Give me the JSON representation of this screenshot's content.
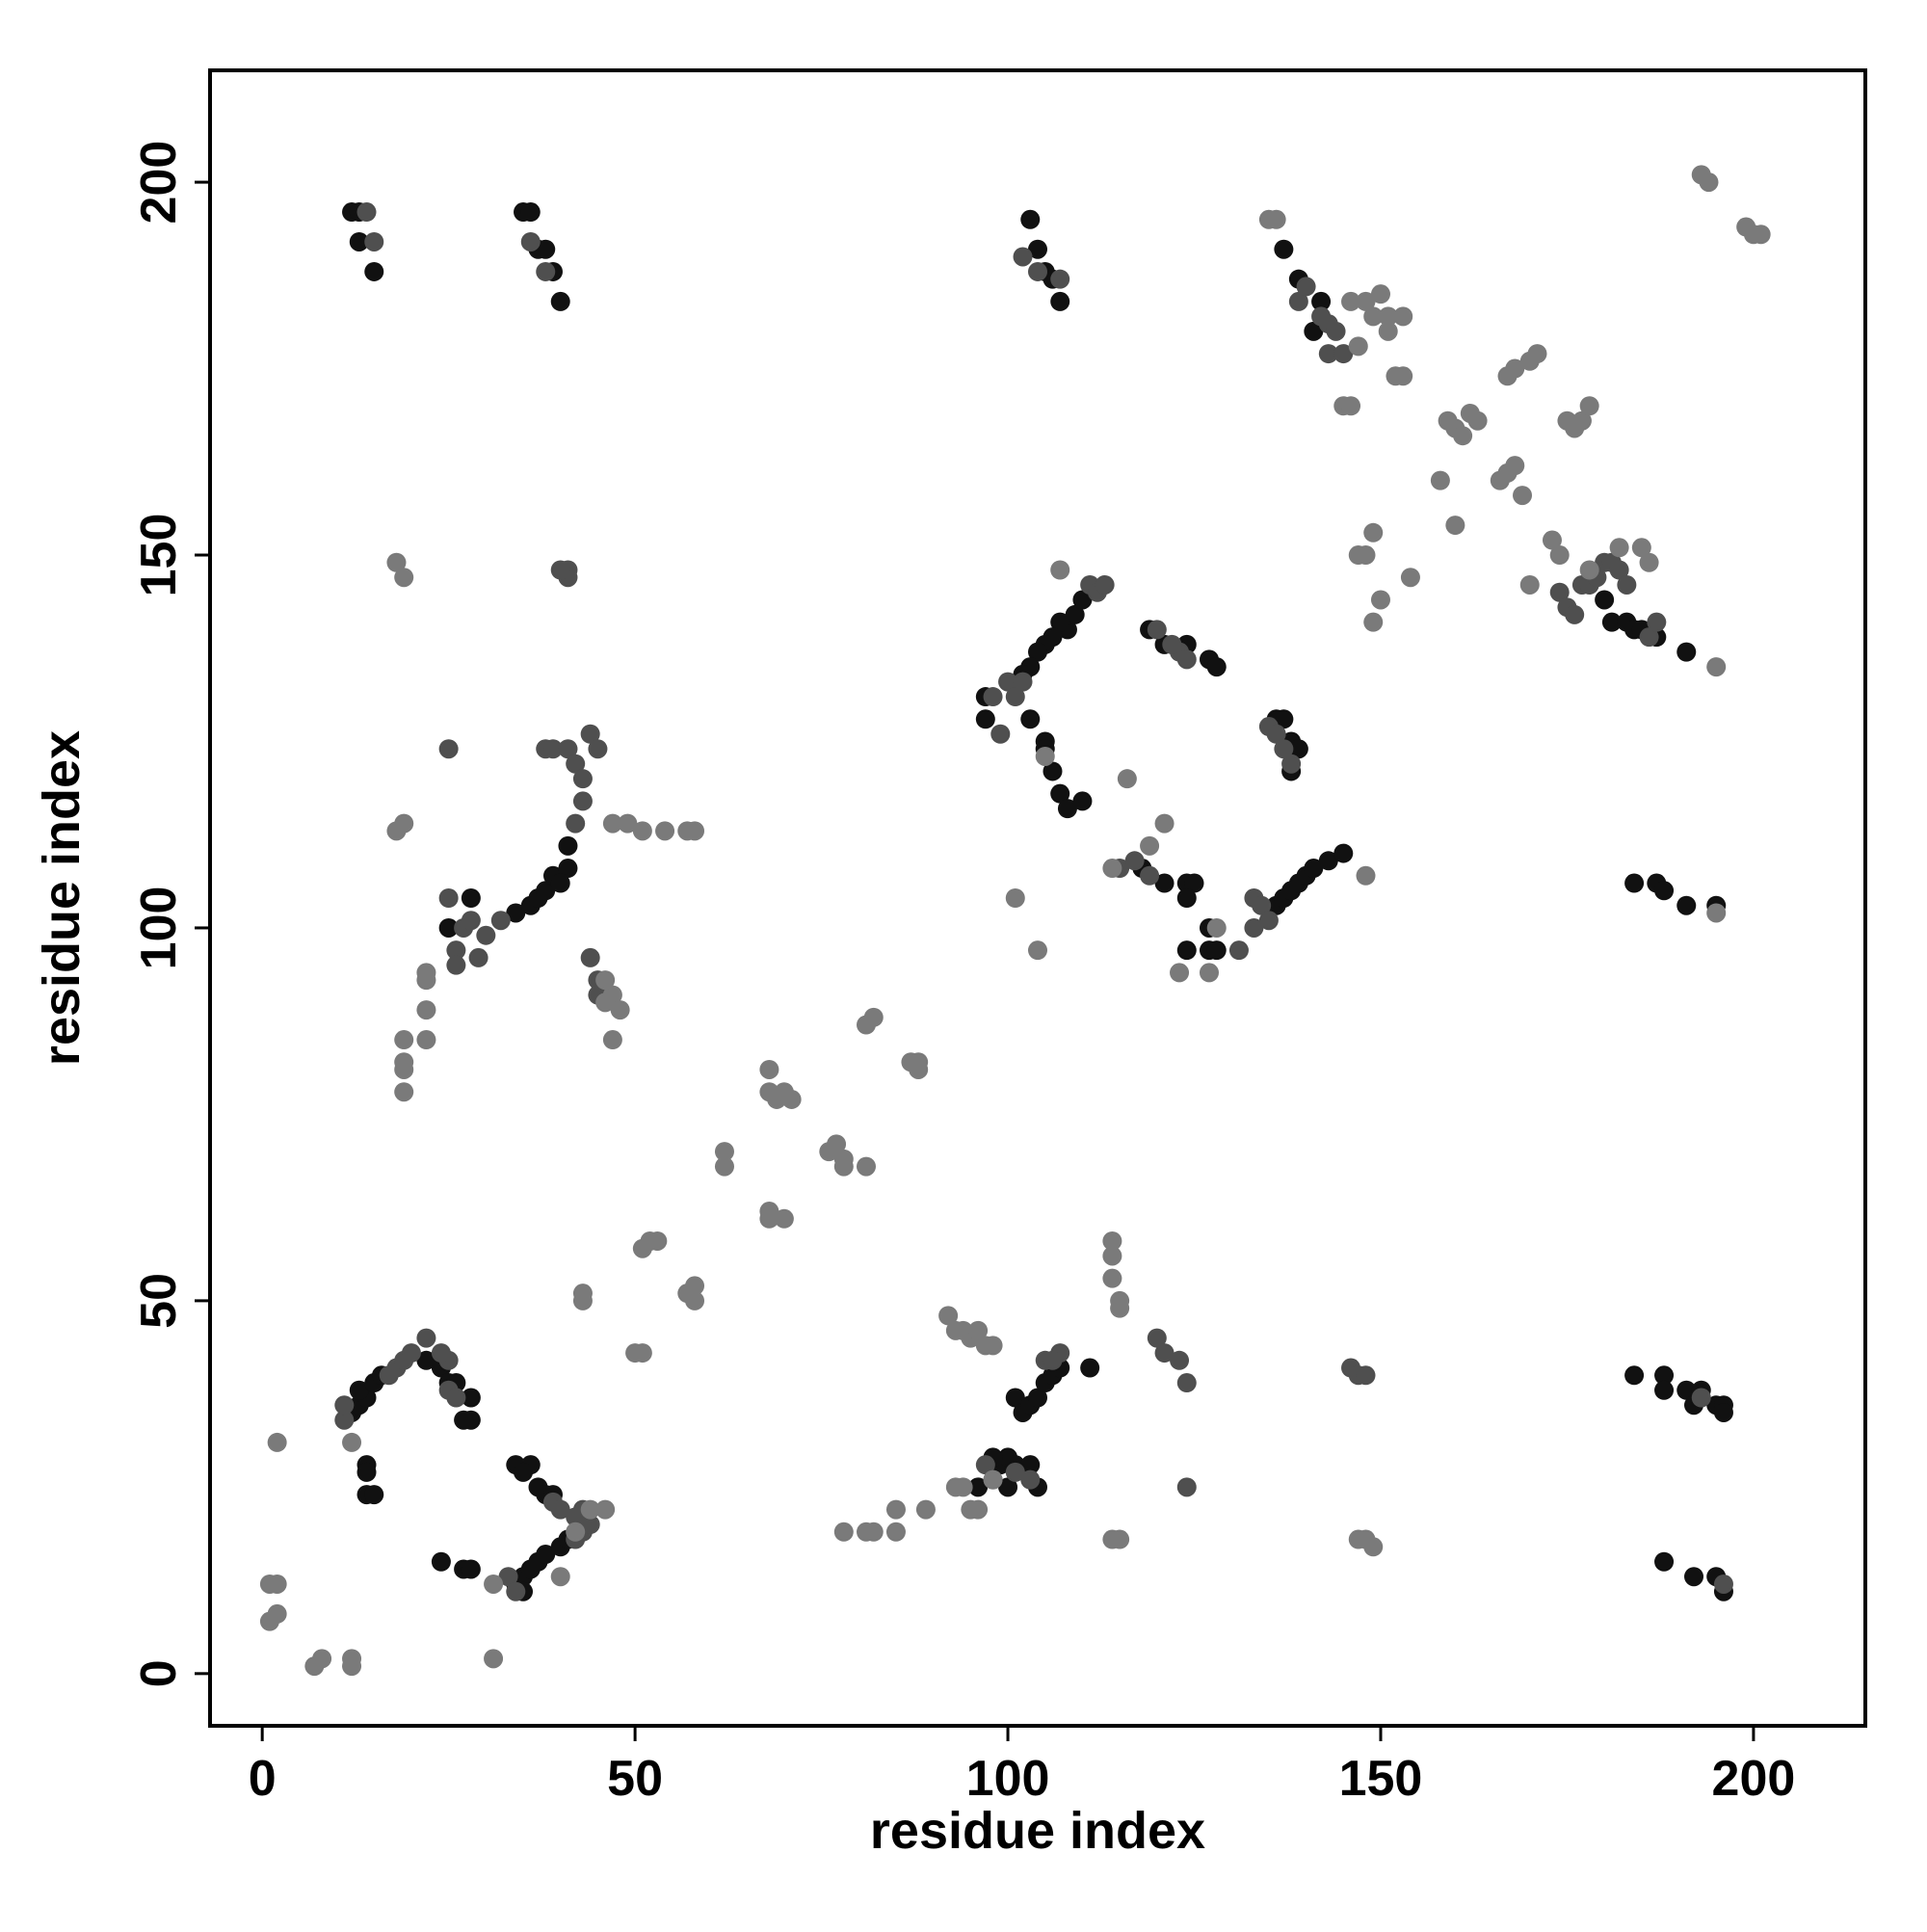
{
  "chart_data": {
    "type": "scatter",
    "xlabel": "residue index",
    "ylabel": "residue index",
    "xlim": [
      -7,
      215
    ],
    "ylim": [
      -7,
      215
    ],
    "xticks": [
      0,
      50,
      100,
      150,
      200
    ],
    "yticks": [
      0,
      50,
      100,
      150,
      200
    ],
    "grid": false,
    "series": [
      {
        "color": "#111111",
        "x": [
          12,
          13,
          13,
          15,
          35,
          36,
          37,
          38,
          39,
          40,
          103,
          104,
          105,
          106,
          107,
          137,
          139,
          141,
          142,
          108,
          109,
          110,
          107,
          106,
          105,
          104,
          103,
          102,
          97,
          97,
          103,
          105,
          105,
          106,
          107,
          108,
          110,
          119,
          121,
          124,
          127,
          128,
          136,
          137,
          138,
          139,
          138,
          136,
          137,
          138,
          139,
          140,
          141,
          143,
          145,
          118,
          121,
          124,
          125,
          124,
          127,
          127,
          128,
          124,
          34,
          36,
          37,
          38,
          39,
          41,
          41,
          40,
          25,
          28,
          12,
          13,
          14,
          13,
          15,
          16,
          14,
          14,
          14,
          15,
          22,
          24,
          25,
          26,
          28,
          28,
          27,
          34,
          36,
          35,
          37,
          38,
          39,
          34,
          35,
          36,
          37,
          38,
          40,
          41,
          24,
          27,
          28,
          35,
          101,
          102,
          103,
          104,
          105,
          106,
          107,
          99,
          100,
          101,
          103,
          104,
          98,
          96,
          100,
          111,
          184,
          188,
          188,
          191,
          192,
          193,
          195,
          196,
          196,
          188,
          192,
          195,
          196,
          184,
          187,
          188,
          191,
          195,
          180,
          181,
          183,
          184,
          185,
          187,
          191
        ],
        "y": [
          196,
          196,
          192,
          188,
          196,
          196,
          191,
          191,
          188,
          184,
          195,
          191,
          188,
          187,
          184,
          191,
          187,
          180,
          184,
          140,
          142,
          144,
          141,
          139,
          138,
          137,
          135,
          134,
          128,
          131,
          128,
          125,
          124,
          121,
          118,
          116,
          117,
          140,
          138,
          138,
          136,
          135,
          128,
          128,
          125,
          124,
          121,
          103,
          104,
          105,
          106,
          107,
          108,
          109,
          110,
          108,
          106,
          106,
          106,
          104,
          100,
          97,
          97,
          97,
          102,
          103,
          104,
          105,
          107,
          108,
          111,
          106,
          100,
          104,
          35,
          36,
          37,
          38,
          39,
          40,
          28,
          27,
          24,
          24,
          42,
          41,
          39,
          39,
          37,
          34,
          34,
          28,
          28,
          27,
          25,
          24,
          24,
          12,
          13,
          14,
          15,
          16,
          17,
          18,
          15,
          14,
          14,
          11,
          37,
          35,
          36,
          37,
          39,
          40,
          41,
          28,
          29,
          28,
          28,
          25,
          29,
          25,
          25,
          41,
          40,
          40,
          38,
          38,
          36,
          38,
          36,
          36,
          35,
          15,
          13,
          13,
          11,
          106,
          106,
          105,
          103,
          103,
          144,
          141,
          141,
          140,
          140,
          139,
          137
        ]
      },
      {
        "color": "#4f4f4f",
        "x": [
          14,
          15,
          36,
          38,
          41,
          41,
          40,
          102,
          104,
          107,
          139,
          140,
          142,
          143,
          144,
          143,
          145,
          111,
          112,
          113,
          100,
          101,
          102,
          98,
          99,
          120,
          123,
          124,
          122,
          135,
          136,
          137,
          138,
          133,
          134,
          135,
          133,
          131,
          115,
          117,
          119,
          25,
          25,
          26,
          26,
          27,
          28,
          29,
          30,
          32,
          38,
          39,
          41,
          42,
          43,
          44,
          45,
          42,
          43,
          44,
          45,
          45,
          11,
          11,
          17,
          18,
          19,
          20,
          22,
          25,
          24,
          25,
          26,
          39,
          40,
          42,
          43,
          42,
          43,
          44,
          33,
          34,
          101,
          98,
          97,
          103,
          105,
          107,
          106,
          120,
          121,
          123,
          124,
          124,
          146,
          147,
          148,
          174,
          175,
          176,
          177,
          178,
          179,
          180,
          181,
          182,
          183,
          186,
          187,
          196,
          193
        ],
        "y": [
          196,
          192,
          192,
          188,
          148,
          147,
          148,
          190,
          188,
          187,
          184,
          186,
          182,
          181,
          180,
          177,
          177,
          146,
          145,
          146,
          133,
          131,
          133,
          131,
          126,
          140,
          137,
          136,
          138,
          127,
          126,
          124,
          122,
          104,
          103,
          101,
          100,
          97,
          108,
          109,
          107,
          124,
          104,
          97,
          95,
          100,
          101,
          96,
          99,
          101,
          124,
          124,
          124,
          122,
          120,
          126,
          124,
          114,
          117,
          96,
          93,
          91,
          34,
          36,
          40,
          41,
          42,
          43,
          45,
          42,
          43,
          38,
          37,
          23,
          22,
          21,
          22,
          18,
          19,
          20,
          13,
          11,
          27,
          26,
          28,
          26,
          42,
          43,
          42,
          45,
          43,
          42,
          39,
          25,
          41,
          40,
          40,
          145,
          143,
          142,
          146,
          146,
          147,
          149,
          149,
          148,
          146,
          139,
          141,
          12,
          37
        ]
      },
      {
        "color": "#7a7a7a",
        "x": [
          1,
          2,
          1,
          2,
          2,
          7,
          8,
          12,
          12,
          31,
          31,
          12,
          18,
          19,
          18,
          19,
          19,
          19,
          19,
          19,
          22,
          22,
          22,
          22,
          47,
          49,
          51,
          54,
          58,
          57,
          46,
          47,
          48,
          47,
          46,
          43,
          43,
          51,
          50,
          51,
          52,
          53,
          58,
          58,
          57,
          62,
          62,
          68,
          68,
          70,
          68,
          69,
          70,
          71,
          68,
          76,
          77,
          78,
          78,
          81,
          81,
          82,
          87,
          88,
          88,
          82,
          81,
          78,
          85,
          85,
          89,
          92,
          93,
          94,
          95,
          96,
          97,
          98,
          95,
          96,
          114,
          114,
          114,
          115,
          115,
          114,
          115,
          148,
          149,
          147,
          101,
          104,
          105,
          107,
          116,
          121,
          119,
          123,
          127,
          128,
          135,
          136,
          160,
          158,
          154,
          149,
          147,
          148,
          149,
          150,
          146,
          148,
          149,
          150,
          151,
          153,
          151,
          147,
          145,
          146,
          152,
          153,
          159,
          160,
          161,
          162,
          163,
          166,
          167,
          168,
          169,
          170,
          168,
          167,
          171,
          175,
          176,
          177,
          178,
          170,
          193,
          194,
          199,
          200,
          201,
          195,
          195,
          148,
          114,
          173,
          174,
          178,
          182,
          185,
          186,
          42,
          44,
          46,
          40,
          93,
          94,
          98
        ],
        "y": [
          7,
          8,
          12,
          12,
          31,
          1,
          2,
          1,
          2,
          2,
          12,
          31,
          149,
          147,
          113,
          114,
          85,
          82,
          81,
          78,
          85,
          89,
          93,
          94,
          114,
          114,
          113,
          113,
          113,
          113,
          90,
          91,
          89,
          85,
          93,
          50,
          51,
          43,
          43,
          57,
          58,
          58,
          50,
          52,
          51,
          68,
          70,
          62,
          61,
          61,
          78,
          77,
          78,
          77,
          81,
          70,
          71,
          69,
          68,
          68,
          87,
          88,
          82,
          82,
          81,
          19,
          19,
          19,
          19,
          22,
          22,
          48,
          46,
          46,
          45,
          46,
          44,
          44,
          22,
          22,
          58,
          56,
          53,
          50,
          49,
          18,
          18,
          18,
          17,
          18,
          104,
          97,
          123,
          148,
          120,
          114,
          111,
          94,
          94,
          100,
          195,
          195,
          154,
          160,
          147,
          153,
          150,
          150,
          141,
          144,
          184,
          184,
          182,
          185,
          182,
          182,
          180,
          178,
          170,
          170,
          174,
          174,
          168,
          167,
          166,
          169,
          168,
          160,
          161,
          162,
          158,
          176,
          175,
          174,
          177,
          168,
          167,
          168,
          170,
          146,
          201,
          200,
          194,
          193,
          193,
          135,
          102,
          107,
          108,
          152,
          150,
          148,
          151,
          151,
          149,
          19,
          22,
          22,
          13,
          25,
          25,
          26
        ]
      }
    ]
  }
}
